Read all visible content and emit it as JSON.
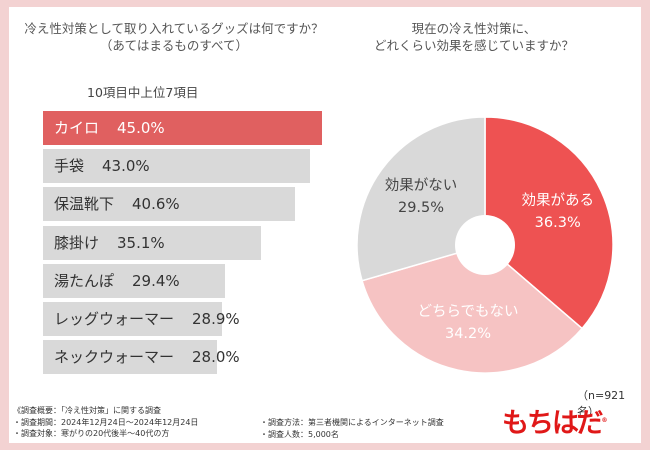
{
  "left_chart": {
    "title_line1": "冷え性対策として取り入れているグッズは何ですか？",
    "title_line2": "（あてはまるものすべて）",
    "subtitle": "10項目中上位7項目"
  },
  "right_chart": {
    "title_line1": "現在の冷え性対策に、",
    "title_line2": "どれくらい効果を感じていますか？"
  },
  "chart_data": [
    {
      "type": "bar",
      "orientation": "horizontal",
      "title": "冷え性対策として取り入れているグッズは何ですか？（あてはまるものすべて）",
      "subtitle": "10項目中上位7項目",
      "categories": [
        "カイロ",
        "手袋",
        "保温靴下",
        "膝掛け",
        "湯たんぽ",
        "レッグウォーマー",
        "ネックウォーマー"
      ],
      "values": [
        45.0,
        43.0,
        40.6,
        35.1,
        29.4,
        28.9,
        28.0
      ],
      "value_labels": [
        "45.0%",
        "43.0%",
        "40.6%",
        "35.1%",
        "29.4%",
        "28.9%",
        "28.0%"
      ],
      "unit": "%",
      "highlight_color": "#e06060",
      "bar_color": "#d9d9d9"
    },
    {
      "type": "pie",
      "title": "現在の冷え性対策に、どれくらい効果を感じていますか？",
      "labels": [
        "効果がある",
        "どちらでもない",
        "効果がない"
      ],
      "values": [
        36.3,
        34.2,
        29.5
      ],
      "value_labels": [
        "36.3%",
        "34.2%",
        "29.5%"
      ],
      "colors": [
        "#ee5252",
        "#f6c3c3",
        "#d9d9d9"
      ],
      "text_colors": [
        "#ffffff",
        "#ffffff",
        "#444444"
      ]
    }
  ],
  "sample_note": "（n=921名）",
  "footer": {
    "overview": "《調査概要：「冷え性対策」に関する調査",
    "period": "・調査期間：2024年12月24日～2024年12月24日",
    "target": "・調査対象：寒がりの20代後半～40代の方",
    "method": "・調査方法：第三者機関によるインターネット調査",
    "count": "・調査人数：5,000名"
  },
  "logo": {
    "text": "もちはだ",
    "mark": "®"
  }
}
